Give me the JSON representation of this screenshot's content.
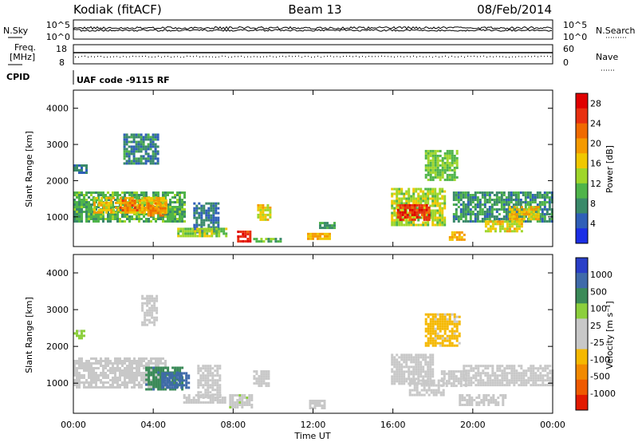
{
  "header": {
    "station": "Kodiak (fitACF)",
    "beam": "Beam 13",
    "date": "08/Feb/2014"
  },
  "panels": {
    "nsky_label": "N.Sky",
    "nsearch_label": "N.Search",
    "freq_label_line1": "Freq.",
    "freq_label_line2": "[MHz]",
    "nave_label": "Nave",
    "cpid_label": "CPID",
    "cpid_value": "UAF code -9115 RF",
    "noise_left_ticks": [
      "10^5",
      "10^0"
    ],
    "noise_right_ticks": [
      "10^5",
      "10^0"
    ],
    "freq_left_ticks": [
      "18",
      "8"
    ],
    "nave_right_ticks": [
      "60",
      "0"
    ],
    "power_colorbar_title": "Power [dB]",
    "velocity_colorbar_title": "Velocity [m s⁻¹]"
  },
  "colors": {
    "power_scale": [
      "#1c2fe6",
      "#2f5fb8",
      "#3a8a6a",
      "#4fb44a",
      "#9fd62a",
      "#f0c800",
      "#f59a00",
      "#f06a00",
      "#e83010",
      "#e00000"
    ],
    "velocity_scale": [
      "#2a3fc8",
      "#3f6aaa",
      "#3b8a58",
      "#8ccf3c",
      "#c8c8c8",
      "#c8c8c8",
      "#f5b800",
      "#f28a00",
      "#ef5a00",
      "#e21a00"
    ],
    "velocity_ground": "#c8c8c8"
  },
  "chart_data": [
    {
      "type": "heatmap",
      "title": "",
      "quantity": "Power",
      "ylabel": "Slant Range [km]",
      "xlabel": "",
      "x_ticks": [
        "00:00",
        "04:00",
        "08:00",
        "12:00",
        "16:00",
        "20:00",
        "00:00"
      ],
      "xlim_hours": [
        0,
        24
      ],
      "ylim": [
        180,
        4500
      ],
      "y_ticks": [
        1000,
        2000,
        3000,
        4000
      ],
      "colorbar_title": "Power [dB]",
      "colorbar_ticks": [
        4,
        8,
        12,
        16,
        20,
        24,
        28
      ],
      "colorbar_range": [
        0,
        30
      ],
      "regions": [
        {
          "t0": 0.0,
          "t1": 0.6,
          "r0": 2200,
          "r1": 2450,
          "v": 6
        },
        {
          "t0": 0.0,
          "t1": 5.6,
          "r0": 850,
          "r1": 1700,
          "v": 10
        },
        {
          "t0": 1.0,
          "t1": 4.6,
          "r0": 1100,
          "r1": 1550,
          "v": 17
        },
        {
          "t0": 2.3,
          "t1": 3.3,
          "r0": 1200,
          "r1": 1480,
          "v": 22
        },
        {
          "t0": 3.7,
          "t1": 4.6,
          "r0": 1050,
          "r1": 1400,
          "v": 21
        },
        {
          "t0": 2.5,
          "t1": 4.2,
          "r0": 2500,
          "r1": 3300,
          "v": 7
        },
        {
          "t0": 6.0,
          "t1": 7.2,
          "r0": 600,
          "r1": 1400,
          "v": 6
        },
        {
          "t0": 9.2,
          "t1": 9.9,
          "r0": 900,
          "r1": 1350,
          "v": 16
        },
        {
          "t0": 5.2,
          "t1": 7.6,
          "r0": 460,
          "r1": 700,
          "v": 13
        },
        {
          "t0": 8.2,
          "t1": 8.9,
          "r0": 350,
          "r1": 620,
          "v": 26
        },
        {
          "t0": 9.0,
          "t1": 10.4,
          "r0": 300,
          "r1": 420,
          "v": 10
        },
        {
          "t0": 11.7,
          "t1": 12.8,
          "r0": 380,
          "r1": 560,
          "v": 18
        },
        {
          "t0": 12.3,
          "t1": 13.1,
          "r0": 700,
          "r1": 860,
          "v": 9
        },
        {
          "t0": 15.9,
          "t1": 18.6,
          "r0": 800,
          "r1": 1800,
          "v": 14
        },
        {
          "t0": 16.2,
          "t1": 17.8,
          "r0": 900,
          "r1": 1350,
          "v": 26
        },
        {
          "t0": 17.6,
          "t1": 19.2,
          "r0": 2000,
          "r1": 2850,
          "v": 12
        },
        {
          "t0": 19.0,
          "t1": 24.0,
          "r0": 850,
          "r1": 1700,
          "v": 8
        },
        {
          "t0": 21.8,
          "t1": 23.3,
          "r0": 950,
          "r1": 1300,
          "v": 17
        },
        {
          "t0": 20.6,
          "t1": 22.5,
          "r0": 600,
          "r1": 900,
          "v": 16
        },
        {
          "t0": 18.8,
          "t1": 19.6,
          "r0": 380,
          "r1": 600,
          "v": 18
        }
      ]
    },
    {
      "type": "heatmap",
      "title": "",
      "quantity": "Velocity",
      "ylabel": "Slant Range [km]",
      "xlabel": "Time UT",
      "x_ticks": [
        "00:00",
        "04:00",
        "08:00",
        "12:00",
        "16:00",
        "20:00",
        "00:00"
      ],
      "xlim_hours": [
        0,
        24
      ],
      "ylim": [
        180,
        4500
      ],
      "y_ticks": [
        1000,
        2000,
        3000,
        4000
      ],
      "colorbar_title": "Velocity [m s⁻¹]",
      "colorbar_ticks": [
        "1000",
        "500",
        "100",
        "25",
        "-25",
        "-100",
        "-500",
        "-1000"
      ],
      "colorbar_range": [
        -1250,
        1250
      ],
      "regions": [
        {
          "t0": 0.0,
          "t1": 0.5,
          "r0": 2250,
          "r1": 2450,
          "v": 300
        },
        {
          "t0": 0.0,
          "t1": 4.6,
          "r0": 900,
          "r1": 1700,
          "v": 0
        },
        {
          "t0": 3.6,
          "t1": 5.5,
          "r0": 850,
          "r1": 1450,
          "v": 700
        },
        {
          "t0": 4.4,
          "t1": 5.8,
          "r0": 900,
          "r1": 1300,
          "v": 900
        },
        {
          "t0": 3.4,
          "t1": 4.2,
          "r0": 2600,
          "r1": 3400,
          "v": 0
        },
        {
          "t0": 5.5,
          "t1": 7.6,
          "r0": 450,
          "r1": 700,
          "v": 150
        },
        {
          "t0": 6.2,
          "t1": 7.3,
          "r0": 600,
          "r1": 1500,
          "v": 0
        },
        {
          "t0": 7.8,
          "t1": 8.9,
          "r0": 350,
          "r1": 700,
          "v": 200
        },
        {
          "t0": 9.0,
          "t1": 9.8,
          "r0": 900,
          "r1": 1350,
          "v": -120
        },
        {
          "t0": 11.8,
          "t1": 12.6,
          "r0": 350,
          "r1": 550,
          "v": 10
        },
        {
          "t0": 15.9,
          "t1": 18.0,
          "r0": 1000,
          "r1": 1800,
          "v": -150
        },
        {
          "t0": 16.8,
          "t1": 18.5,
          "r0": 650,
          "r1": 1100,
          "v": 150
        },
        {
          "t0": 17.6,
          "t1": 19.3,
          "r0": 2000,
          "r1": 2900,
          "v": -300
        },
        {
          "t0": 18.4,
          "t1": 19.6,
          "r0": 900,
          "r1": 1350,
          "v": -120
        },
        {
          "t0": 19.5,
          "t1": 24.0,
          "r0": 950,
          "r1": 1500,
          "v": 0
        },
        {
          "t0": 19.3,
          "t1": 21.6,
          "r0": 430,
          "r1": 700,
          "v": -150
        }
      ]
    }
  ]
}
